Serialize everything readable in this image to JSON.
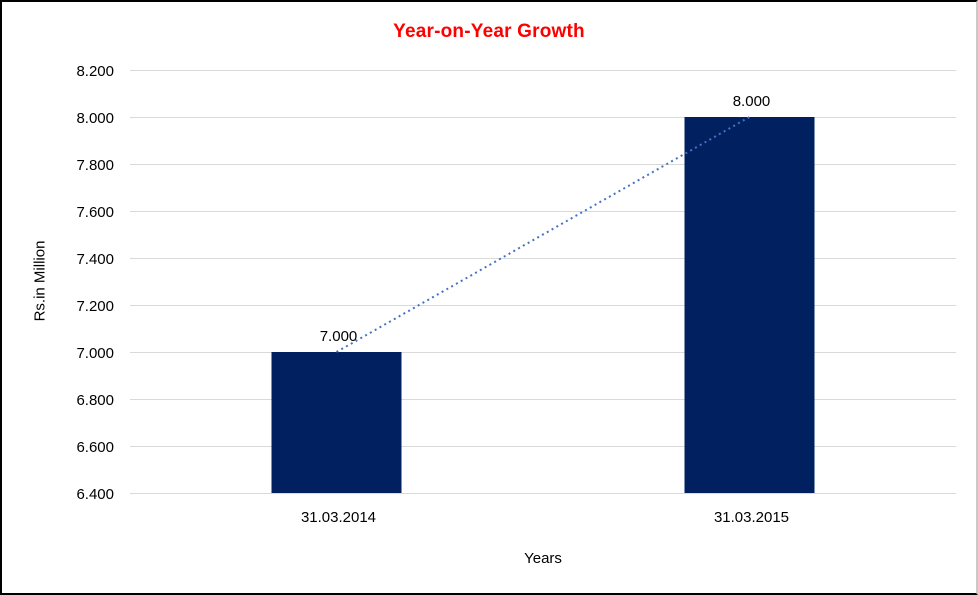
{
  "chart_data": {
    "type": "bar",
    "title": "Year-on-Year Growth",
    "xlabel": "Years",
    "ylabel": "Rs.in Million",
    "categories": [
      "31.03.2014",
      "31.03.2015"
    ],
    "values": [
      7.0,
      8.0
    ],
    "value_labels": [
      "7.000",
      "8.000"
    ],
    "y_ticks": [
      "8.200",
      "8.000",
      "7.800",
      "7.600",
      "7.400",
      "7.200",
      "7.000",
      "6.800",
      "6.600",
      "6.400"
    ],
    "ylim": [
      6.4,
      8.2
    ],
    "y_step": 0.2,
    "grid": true,
    "legend": "none",
    "trendline": {
      "style": "dotted",
      "from_value": 7.0,
      "to_value": 8.0
    },
    "colors": {
      "bar": "#002060",
      "trendline": "#4472C4",
      "gridline": "#D9D9D9",
      "axis_line": "#D9D9D9",
      "title": "#FF0000",
      "text": "#000000",
      "background": "#FFFFFF"
    }
  }
}
